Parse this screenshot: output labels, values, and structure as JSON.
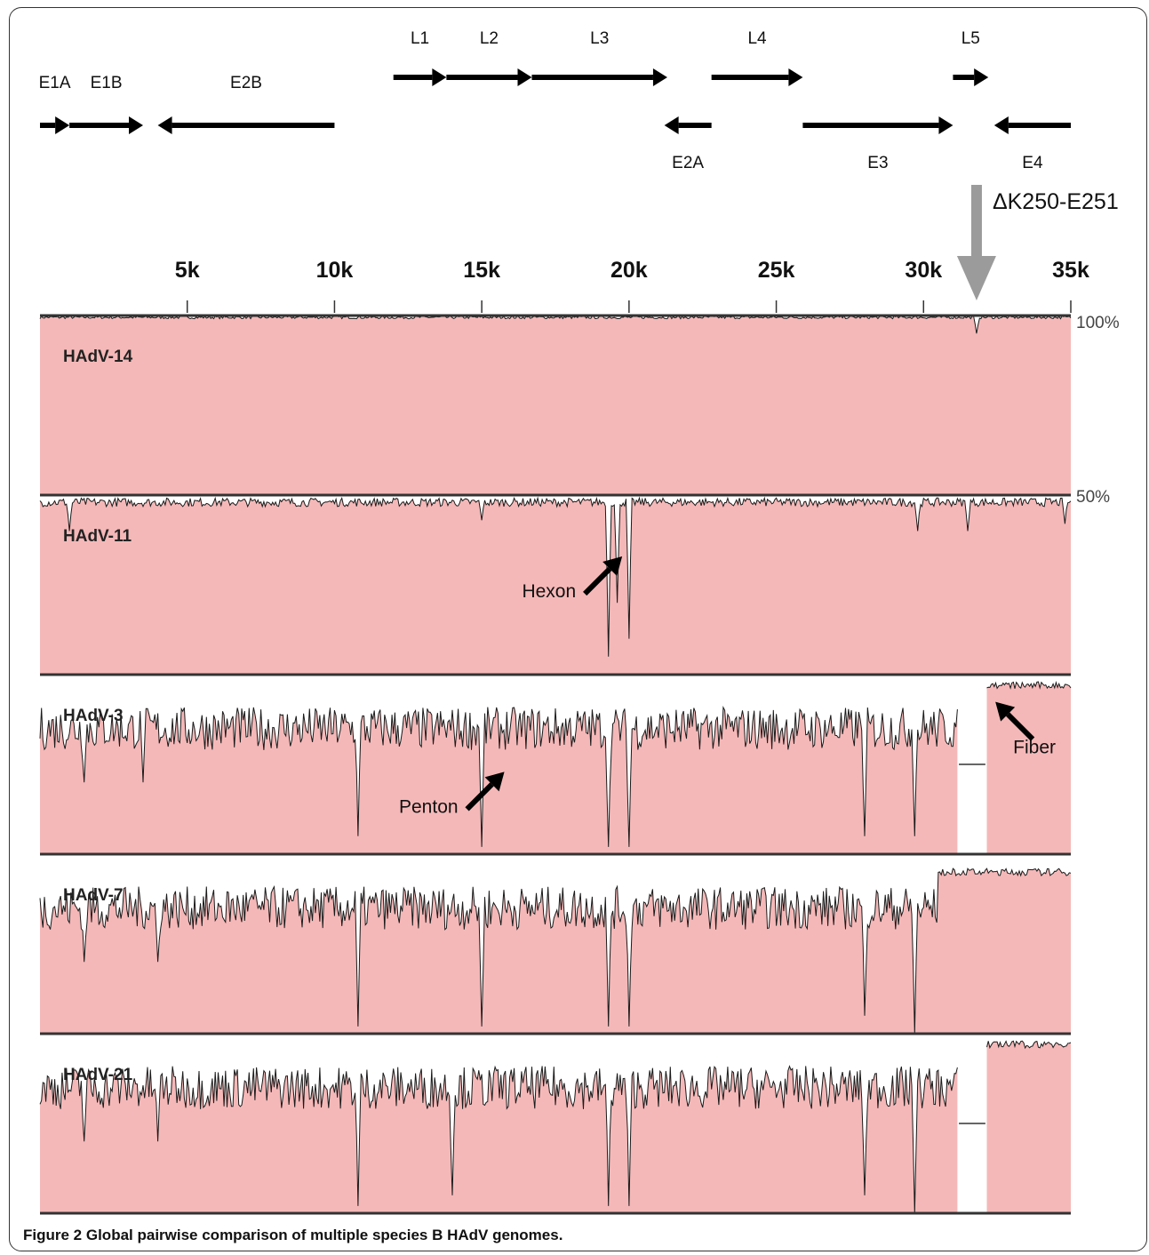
{
  "chart_data": {
    "type": "area",
    "x_unit": "bp",
    "xlim": [
      0,
      35000
    ],
    "x_ticks": [
      5000,
      10000,
      15000,
      20000,
      25000,
      30000,
      35000
    ],
    "x_tick_labels": [
      "5k",
      "10k",
      "15k",
      "20k",
      "25k",
      "30k",
      "35k"
    ],
    "ylim": [
      50,
      100
    ],
    "y_tick_labels": [
      "100%",
      "50%"
    ],
    "grid": false,
    "legend": "none",
    "fill_color": "#f5b8b8",
    "genes": [
      {
        "name": "E1A",
        "start": 0,
        "end": 1000,
        "strand": "+",
        "row": "lower"
      },
      {
        "name": "E1B",
        "start": 1000,
        "end": 3500,
        "strand": "+",
        "row": "lower"
      },
      {
        "name": "E2B",
        "start": 4000,
        "end": 10000,
        "strand": "-",
        "row": "lower"
      },
      {
        "name": "L1",
        "start": 12000,
        "end": 13800,
        "strand": "+",
        "row": "upper"
      },
      {
        "name": "L2",
        "start": 13800,
        "end": 16700,
        "strand": "+",
        "row": "upper"
      },
      {
        "name": "L3",
        "start": 16700,
        "end": 21300,
        "strand": "+",
        "row": "upper"
      },
      {
        "name": "L4",
        "start": 22800,
        "end": 25900,
        "strand": "+",
        "row": "upper"
      },
      {
        "name": "L5",
        "start": 31000,
        "end": 32200,
        "strand": "+",
        "row": "upper"
      },
      {
        "name": "E2A",
        "start": 21200,
        "end": 22800,
        "strand": "-",
        "row": "lower"
      },
      {
        "name": "E3",
        "start": 25900,
        "end": 31000,
        "strand": "+",
        "row": "lower"
      },
      {
        "name": "E4",
        "start": 32400,
        "end": 35000,
        "strand": "-",
        "row": "lower"
      }
    ],
    "deletion_marker": {
      "label": "ΔK250-E251",
      "position": 31800
    },
    "series": [
      {
        "name": "HAdV-14",
        "baseline_identity": 99.5,
        "noise": 0.4,
        "dips": [
          {
            "x": 31800,
            "y": 95
          }
        ]
      },
      {
        "name": "HAdV-11",
        "baseline_identity": 98,
        "noise": 1.2,
        "dips": [
          {
            "x": 1000,
            "y": 90
          },
          {
            "x": 15000,
            "y": 93
          },
          {
            "x": 19300,
            "y": 55
          },
          {
            "x": 19600,
            "y": 70
          },
          {
            "x": 20000,
            "y": 60
          },
          {
            "x": 29800,
            "y": 90
          },
          {
            "x": 31500,
            "y": 90
          },
          {
            "x": 34800,
            "y": 92
          }
        ]
      },
      {
        "name": "HAdV-3",
        "baseline_identity": 85,
        "noise": 6,
        "dips": [
          {
            "x": 1500,
            "y": 70
          },
          {
            "x": 3500,
            "y": 70
          },
          {
            "x": 10800,
            "y": 55
          },
          {
            "x": 15000,
            "y": 52
          },
          {
            "x": 19300,
            "y": 52
          },
          {
            "x": 20000,
            "y": 52
          },
          {
            "x": 28000,
            "y": 55
          },
          {
            "x": 29700,
            "y": 55
          },
          {
            "x": 31700,
            "y": 50
          }
        ],
        "gaps": [
          [
            31200,
            32100
          ]
        ],
        "high_region": {
          "start": 32100,
          "end": 35000,
          "y": 97
        }
      },
      {
        "name": "HAdV-7",
        "baseline_identity": 85,
        "noise": 6,
        "dips": [
          {
            "x": 1500,
            "y": 70
          },
          {
            "x": 4000,
            "y": 70
          },
          {
            "x": 10800,
            "y": 52
          },
          {
            "x": 15000,
            "y": 52
          },
          {
            "x": 19300,
            "y": 52
          },
          {
            "x": 20000,
            "y": 52
          },
          {
            "x": 28000,
            "y": 55
          },
          {
            "x": 29700,
            "y": 50
          }
        ],
        "high_region": {
          "start": 30500,
          "end": 35000,
          "y": 95
        }
      },
      {
        "name": "HAdV-21",
        "baseline_identity": 85,
        "noise": 6,
        "dips": [
          {
            "x": 1500,
            "y": 70
          },
          {
            "x": 4000,
            "y": 70
          },
          {
            "x": 10800,
            "y": 52
          },
          {
            "x": 14000,
            "y": 55
          },
          {
            "x": 19300,
            "y": 52
          },
          {
            "x": 20000,
            "y": 52
          },
          {
            "x": 28000,
            "y": 55
          },
          {
            "x": 29700,
            "y": 50
          }
        ],
        "gaps": [
          [
            31200,
            32100
          ]
        ],
        "high_region": {
          "start": 32100,
          "end": 35000,
          "y": 97
        }
      }
    ],
    "annotations": [
      {
        "text": "Hexon",
        "series": "HAdV-11",
        "x": 18500,
        "y": 75,
        "arrow": "up-right"
      },
      {
        "text": "Penton",
        "series": "HAdV-3",
        "x": 14500,
        "y": 65,
        "arrow": "up-right"
      },
      {
        "text": "Fiber",
        "series": "HAdV-3",
        "x": 32500,
        "y": 85,
        "arrow": "up-left"
      }
    ]
  },
  "caption": {
    "label": "Figure 2",
    "text": "Global pairwise comparison of multiple species B HAdV genomes."
  }
}
